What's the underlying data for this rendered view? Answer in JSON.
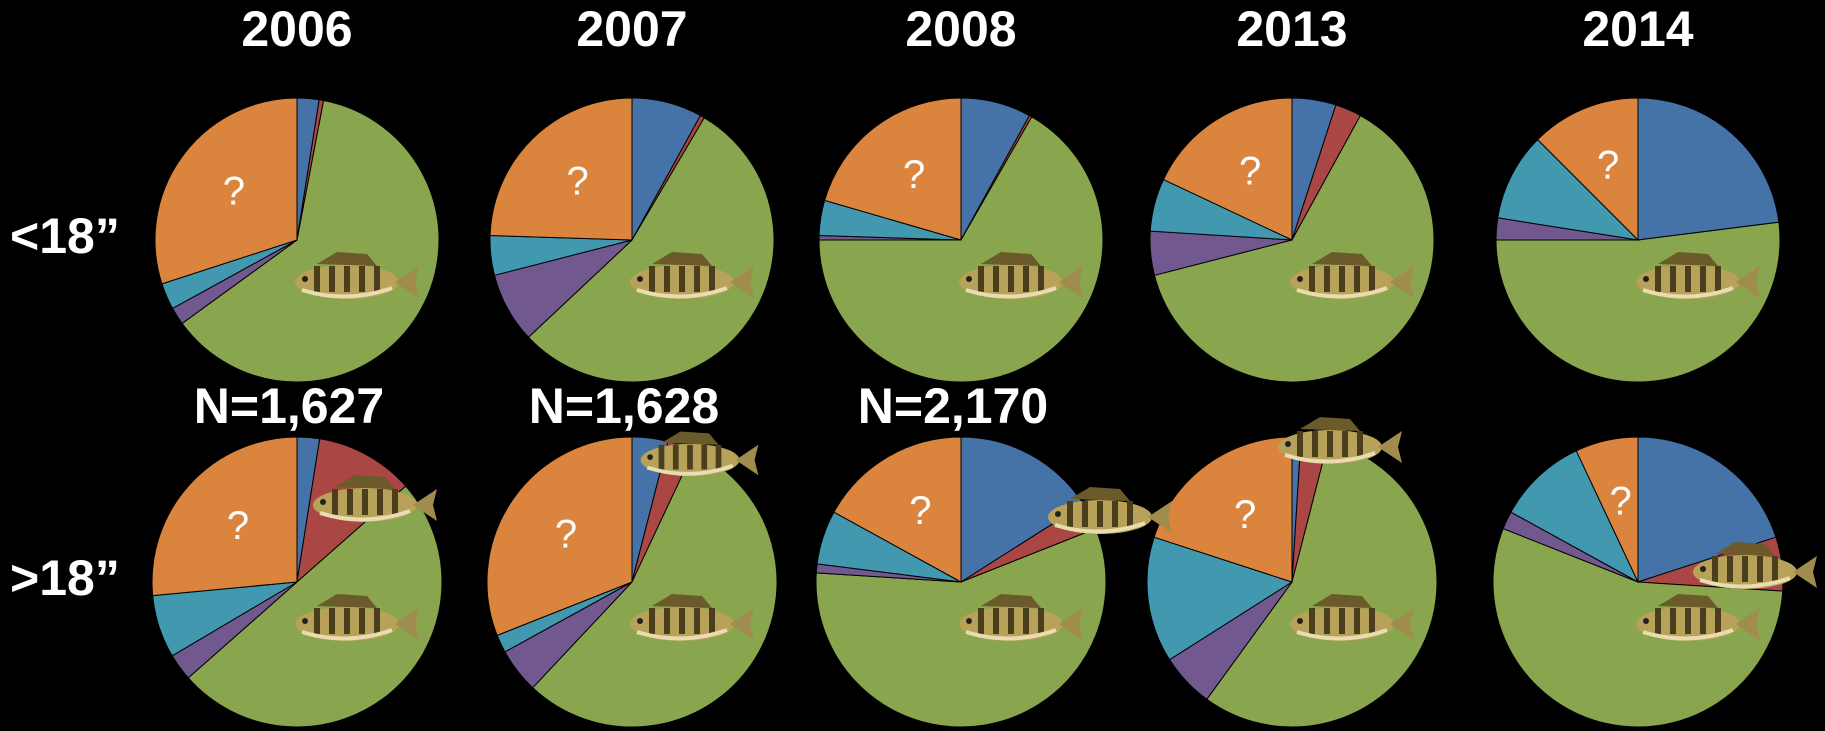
{
  "columns": [
    "2006",
    "2007",
    "2008",
    "2013",
    "2014"
  ],
  "rows": [
    "<18”",
    ">18”"
  ],
  "chart_data": [
    {
      "type": "pie",
      "values": [
        2.5,
        0.5,
        62,
        2,
        3,
        30
      ],
      "colors": [
        "#4572a7",
        "#aa4643",
        "#89a54e",
        "#71588f",
        "#4198af",
        "#db843d"
      ],
      "label": "?",
      "note": "N=1,627"
    },
    {
      "type": "pie",
      "values": [
        8,
        0.5,
        54.5,
        8,
        4.5,
        24.5
      ],
      "colors": [
        "#4572a7",
        "#aa4643",
        "#89a54e",
        "#71588f",
        "#4198af",
        "#db843d"
      ],
      "label": "?",
      "note": "N=1,628"
    },
    {
      "type": "pie",
      "values": [
        8,
        0.3,
        66.7,
        0.5,
        4,
        20.5
      ],
      "colors": [
        "#4572a7",
        "#aa4643",
        "#89a54e",
        "#71588f",
        "#4198af",
        "#db843d"
      ],
      "label": "?",
      "note": "N=2,170"
    },
    {
      "type": "pie",
      "values": [
        5,
        3,
        63,
        5,
        6,
        18
      ],
      "colors": [
        "#4572a7",
        "#aa4643",
        "#89a54e",
        "#71588f",
        "#4198af",
        "#db843d"
      ],
      "label": "?"
    },
    {
      "type": "pie",
      "values": [
        23,
        0,
        52,
        2.5,
        10,
        12.5
      ],
      "colors": [
        "#4572a7",
        "#aa4643",
        "#89a54e",
        "#71588f",
        "#4198af",
        "#db843d"
      ],
      "label": "?"
    },
    {
      "type": "pie",
      "values": [
        2.5,
        11,
        50,
        3,
        7,
        26.5
      ],
      "colors": [
        "#4572a7",
        "#aa4643",
        "#89a54e",
        "#71588f",
        "#4198af",
        "#db843d"
      ],
      "label": "?"
    },
    {
      "type": "pie",
      "values": [
        4,
        3,
        55,
        5,
        2,
        31
      ],
      "colors": [
        "#4572a7",
        "#aa4643",
        "#89a54e",
        "#71588f",
        "#4198af",
        "#db843d"
      ],
      "label": "?"
    },
    {
      "type": "pie",
      "values": [
        16,
        3,
        57,
        1,
        6,
        17
      ],
      "colors": [
        "#4572a7",
        "#aa4643",
        "#89a54e",
        "#71588f",
        "#4198af",
        "#db843d"
      ],
      "label": "?"
    },
    {
      "type": "pie",
      "values": [
        1,
        3,
        56,
        6,
        14,
        20
      ],
      "colors": [
        "#4572a7",
        "#aa4643",
        "#89a54e",
        "#71588f",
        "#4198af",
        "#db843d"
      ],
      "label": "?"
    },
    {
      "type": "pie",
      "values": [
        20,
        6,
        55,
        2,
        10,
        7
      ],
      "colors": [
        "#4572a7",
        "#aa4643",
        "#89a54e",
        "#71588f",
        "#4198af",
        "#db843d"
      ],
      "label": "?"
    }
  ]
}
